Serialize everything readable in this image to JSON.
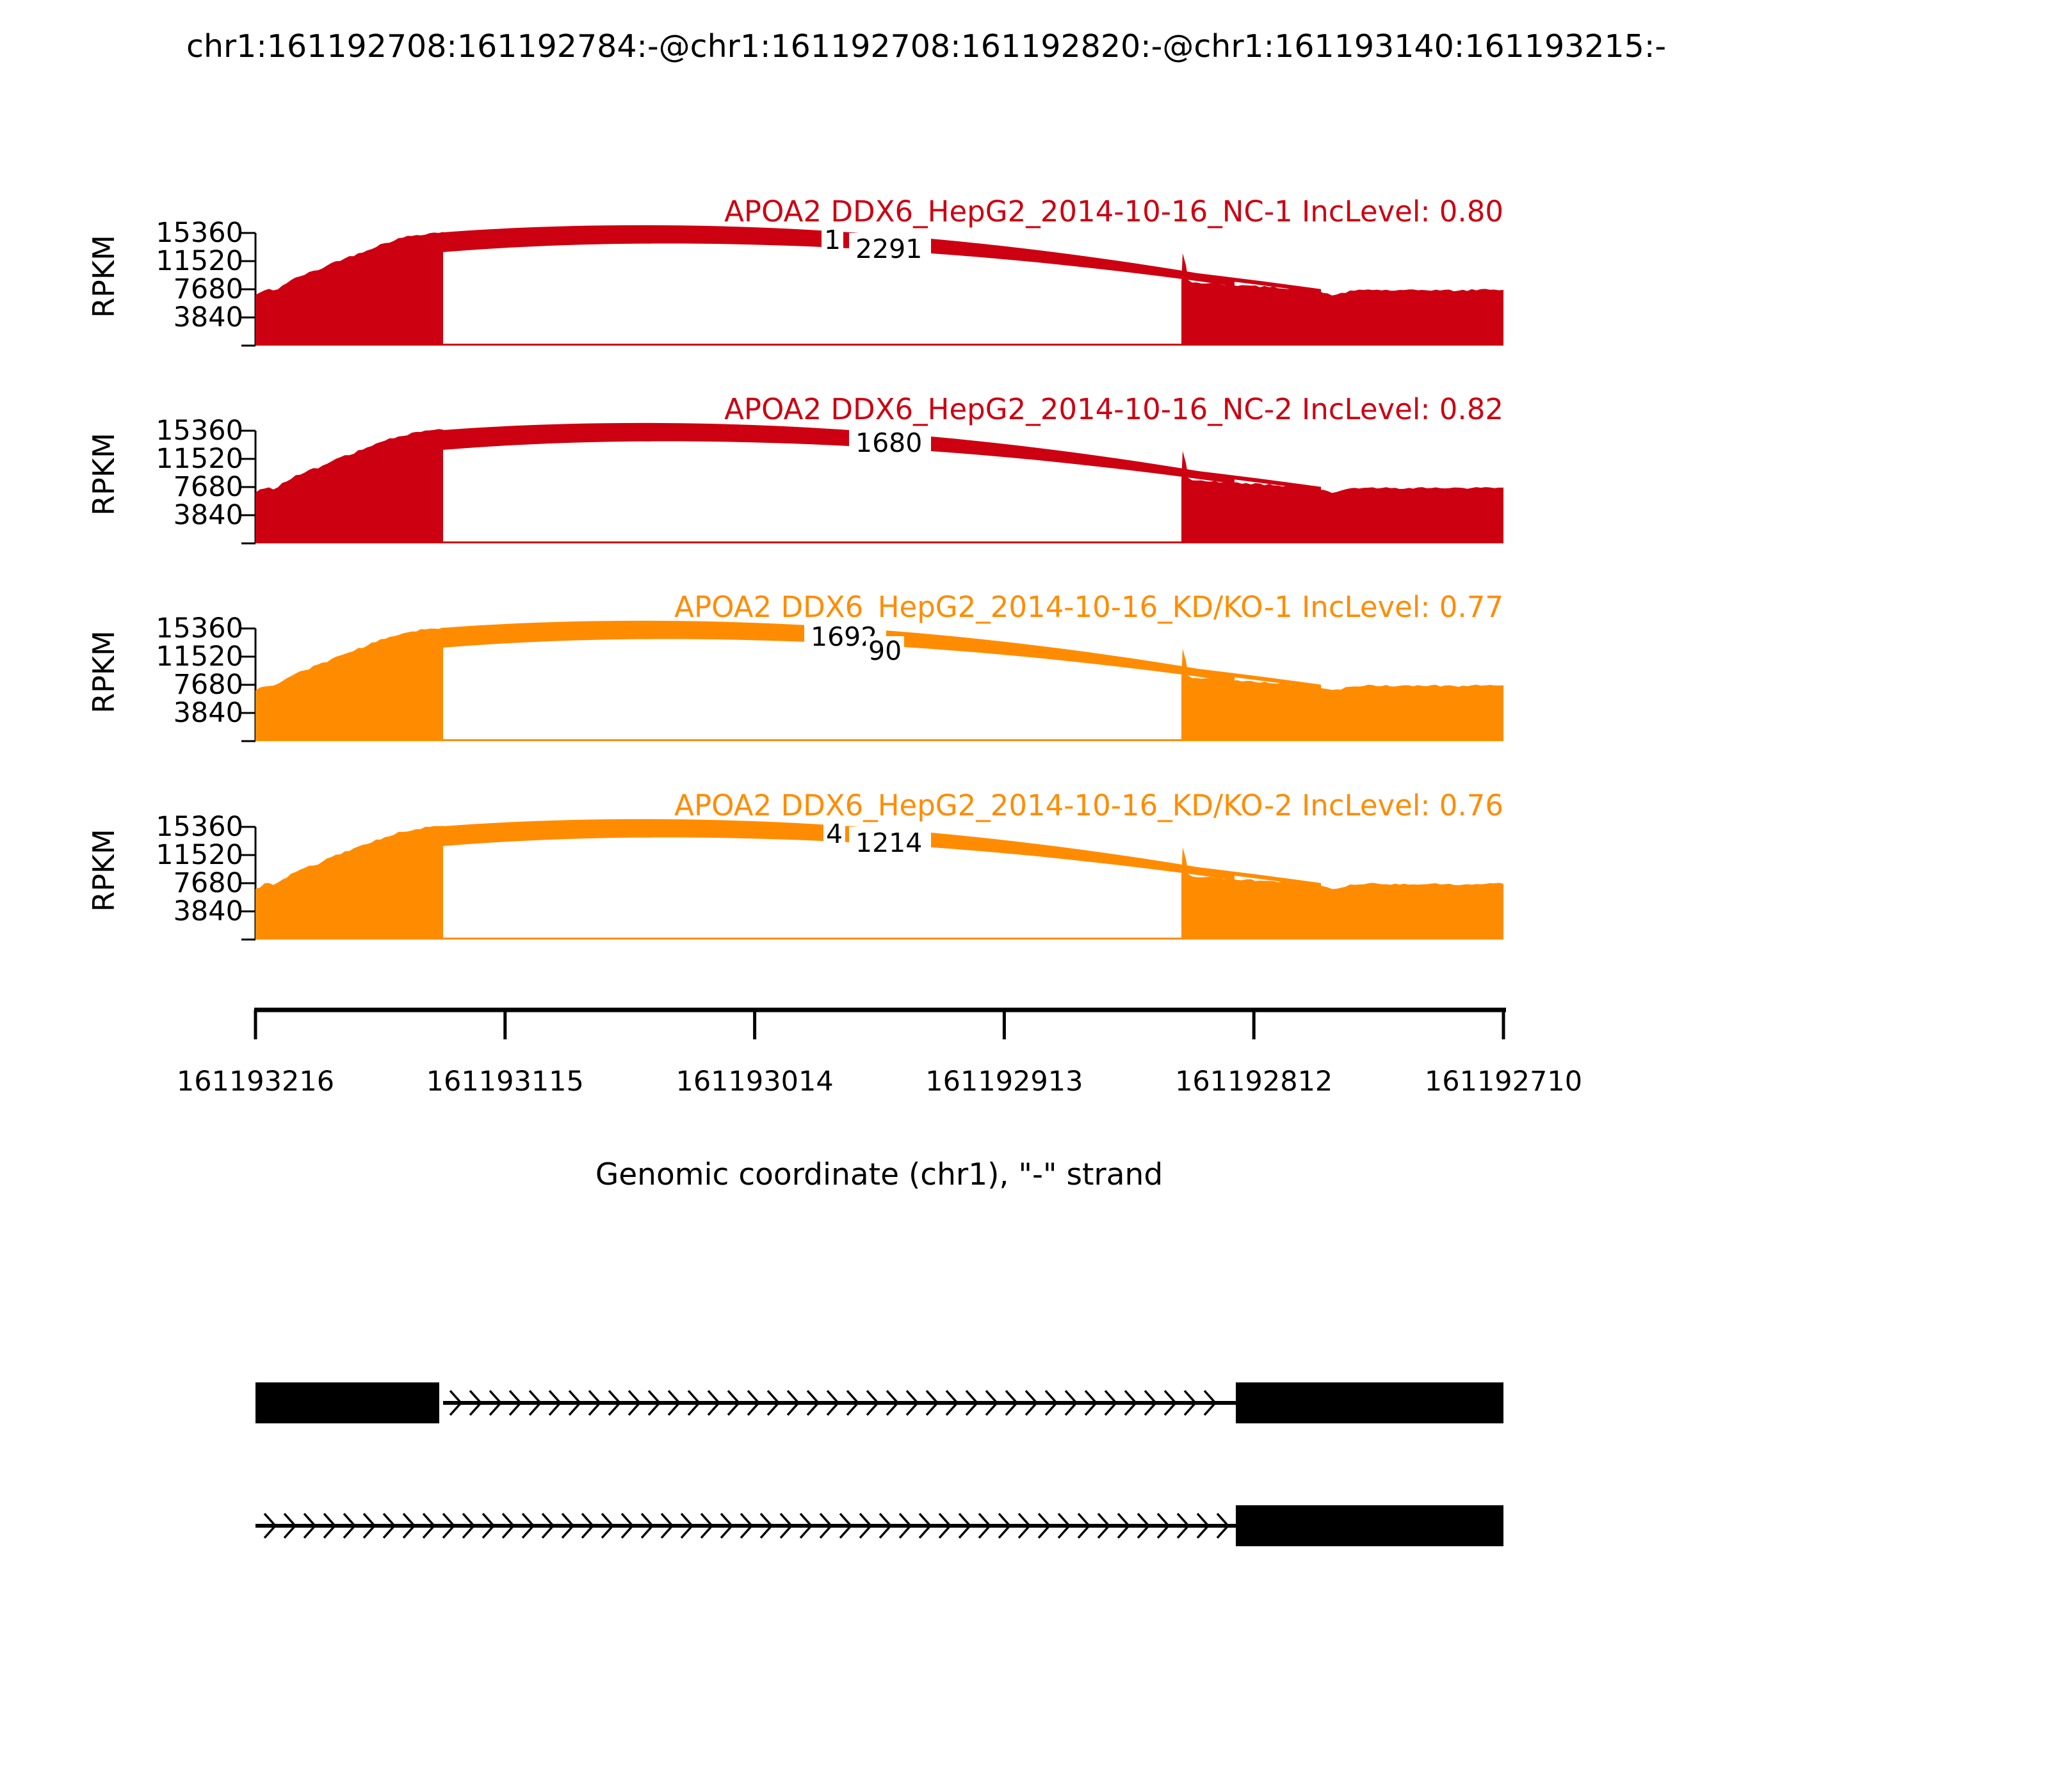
{
  "main_title": "chr1:161192708:161192784:-@chr1:161192708:161192820:-@chr1:161193140:161193215:-",
  "yaxis": {
    "label": "RPKM",
    "ticks": [
      "15360",
      "11520",
      "7680",
      "3840"
    ]
  },
  "xaxis": {
    "label": "Genomic coordinate (chr1), \"-\" strand",
    "ticks": [
      "161193216",
      "161193115",
      "161193014",
      "161192913",
      "161192812",
      "161192710"
    ]
  },
  "tracks": [
    {
      "title": "APOA2 DDX6_HepG2_2014-10-16_NC-1 IncLevel: 0.80",
      "color": "#CC0011",
      "junction_labels": [
        {
          "text": "1",
          "boxed": false
        },
        {
          "text": "2291",
          "boxed": true
        }
      ]
    },
    {
      "title": "APOA2 DDX6_HepG2_2014-10-16_NC-2 IncLevel: 0.82",
      "color": "#CC0011",
      "junction_labels": [
        {
          "text": "1680",
          "boxed": true
        }
      ]
    },
    {
      "title": "APOA2 DDX6_HepG2_2014-10-16_KD/KO-1 IncLevel: 0.77",
      "color": "#FF8C00",
      "junction_labels": [
        {
          "text": "1692",
          "boxed": true
        },
        {
          "text": "90",
          "boxed": false
        }
      ]
    },
    {
      "title": "APOA2 DDX6_HepG2_2014-10-16_KD/KO-2 IncLevel: 0.76",
      "color": "#FF8C00",
      "junction_labels": [
        {
          "text": "4",
          "boxed": false
        },
        {
          "text": "1214",
          "boxed": true
        }
      ]
    }
  ],
  "chart_data": {
    "type": "area",
    "subtype": "sashimi-plot",
    "title": "chr1:161192708:161192784:-@chr1:161192708:161192820:-@chr1:161193140:161193215:-",
    "gene": "APOA2",
    "strand": "-",
    "xlabel": "Genomic coordinate (chr1), \"-\" strand",
    "ylabel": "RPKM",
    "x_ticks": [
      161193216,
      161193115,
      161193014,
      161192913,
      161192812,
      161192710
    ],
    "x_axis_inverted": true,
    "y_ticks": [
      3840,
      7680,
      11520,
      15360
    ],
    "ylim": [
      0,
      15360
    ],
    "tracks": [
      {
        "sample": "DDX6_HepG2_2014-10-16_NC-1",
        "inc_level": 0.8,
        "color": "#CC0011",
        "visible_junction_read_labels": [
          "1",
          "2291"
        ],
        "coverage_summary": {
          "left_exon_peak_rpkm": 15400,
          "left_exon_start_rpkm": 6900,
          "right_region_rpkm": 7700
        }
      },
      {
        "sample": "DDX6_HepG2_2014-10-16_NC-2",
        "inc_level": 0.82,
        "color": "#CC0011",
        "visible_junction_read_labels": [
          "1680"
        ],
        "coverage_summary": {
          "left_exon_peak_rpkm": 15400,
          "left_exon_start_rpkm": 6900,
          "right_region_rpkm": 7700
        }
      },
      {
        "sample": "DDX6_HepG2_2014-10-16_KD/KO-1",
        "inc_level": 0.77,
        "color": "#FF8C00",
        "visible_junction_read_labels": [
          "1692",
          "90"
        ],
        "coverage_summary": {
          "left_exon_peak_rpkm": 15400,
          "left_exon_start_rpkm": 6900,
          "right_region_rpkm": 7700
        }
      },
      {
        "sample": "DDX6_HepG2_2014-10-16_KD/KO-2",
        "inc_level": 0.76,
        "color": "#FF8C00",
        "visible_junction_read_labels": [
          "4",
          "1214"
        ],
        "coverage_summary": {
          "left_exon_peak_rpkm": 15400,
          "left_exon_start_rpkm": 6900,
          "right_region_rpkm": 7700
        }
      }
    ],
    "junction_arcs_per_track": [
      {
        "from_coord": 161193140,
        "to_coord": 161192820,
        "style": "thick"
      },
      {
        "from_coord": 161193140,
        "to_coord": 161192784,
        "style": "thin"
      }
    ],
    "isoforms": [
      {
        "left_exon": true,
        "right_exon": true,
        "intron_arrows_direction": "right"
      },
      {
        "left_exon": false,
        "right_exon": true,
        "intron_arrows_direction": "right"
      }
    ]
  }
}
